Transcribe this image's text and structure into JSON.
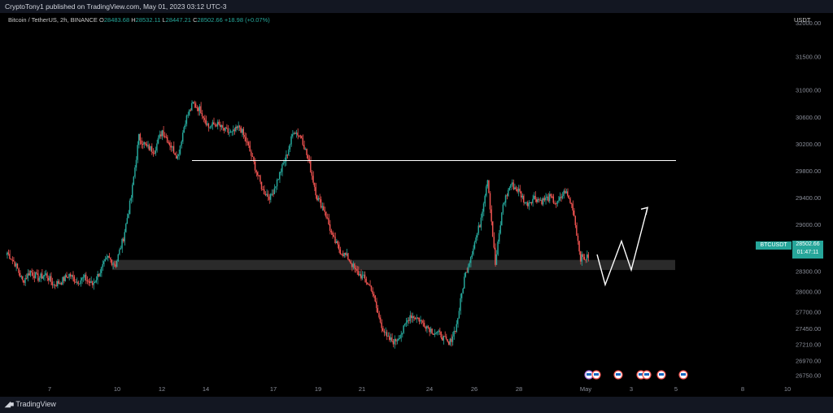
{
  "header": {
    "publisher": "CryptoTony1 published on TradingView.com, May 01, 2023 03:12 UTC-3"
  },
  "legend": {
    "symbol": "Bitcoin / TetherUS, 2h, BINANCE",
    "o_label": "O",
    "o_value": "28483.68",
    "h_label": "H",
    "h_value": "28532.11",
    "l_label": "L",
    "l_value": "28447.21",
    "c_label": "C",
    "c_value": "28502.66",
    "change": "+18.98 (+0.07%)"
  },
  "price_scale": {
    "currency": "USDT",
    "ticks": [
      "32000.00",
      "31500.00",
      "31000.00",
      "30600.00",
      "30200.00",
      "29800.00",
      "29400.00",
      "29000.00",
      "28600.00",
      "28300.00",
      "28000.00",
      "27700.00",
      "27450.00",
      "27210.00",
      "26970.00",
      "26750.00"
    ]
  },
  "price_marker": {
    "symbol": "BTCUSDT",
    "price": "28502.66",
    "countdown": "01:47:11"
  },
  "time_axis": {
    "labels": [
      "7",
      "10",
      "12",
      "14",
      "17",
      "19",
      "21",
      "24",
      "26",
      "28",
      "May",
      "3",
      "5",
      "8",
      "10"
    ]
  },
  "footer": {
    "brand": "TradingView"
  },
  "colors": {
    "up": "#26a69a",
    "down": "#ef5350",
    "background": "#000000",
    "drawing": "#ffffff",
    "zone": "#2a2a2a"
  },
  "chart_data": {
    "type": "candlestick",
    "symbol": "BTCUSDT",
    "interval": "2h",
    "ylim": [
      26650,
      32050
    ],
    "key_resistance": 29950,
    "support_zone": [
      28320,
      28470
    ],
    "projection": [
      28550,
      28100,
      28750,
      28320,
      29250
    ],
    "last_price": 28502.66,
    "close_path": [
      28580,
      28420,
      28150,
      28300,
      28200,
      28250,
      28100,
      28150,
      28250,
      28150,
      28200,
      28100,
      28300,
      28500,
      28400,
      28800,
      29400,
      30300,
      30150,
      30100,
      30400,
      30200,
      30000,
      30550,
      30800,
      30700,
      30450,
      30500,
      30400,
      30350,
      30450,
      30200,
      29850,
      29500,
      29400,
      29700,
      30000,
      30400,
      30300,
      29900,
      29400,
      29200,
      28800,
      28600,
      28500,
      28300,
      28200,
      28050,
      27600,
      27300,
      27250,
      27400,
      27650,
      27600,
      27500,
      27400,
      27350,
      27200,
      27500,
      28200,
      28600,
      29000,
      29700,
      28400,
      29300,
      29600,
      29500,
      29300,
      29400,
      29350,
      29400,
      29300,
      29500,
      29250,
      28500,
      28502
    ]
  }
}
